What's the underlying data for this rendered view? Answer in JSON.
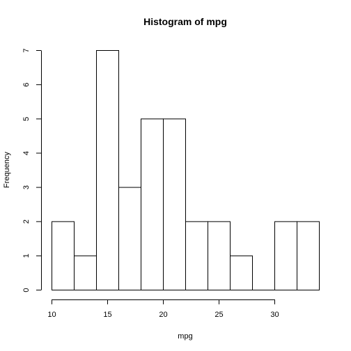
{
  "chart_data": {
    "type": "bar",
    "title": "Histogram of mpg",
    "xlabel": "mpg",
    "ylabel": "Frequency",
    "bins": [
      {
        "from": 10,
        "to": 12,
        "count": 2
      },
      {
        "from": 12,
        "to": 14,
        "count": 1
      },
      {
        "from": 14,
        "to": 16,
        "count": 7
      },
      {
        "from": 16,
        "to": 18,
        "count": 3
      },
      {
        "from": 18,
        "to": 20,
        "count": 5
      },
      {
        "from": 20,
        "to": 22,
        "count": 5
      },
      {
        "from": 22,
        "to": 24,
        "count": 2
      },
      {
        "from": 24,
        "to": 26,
        "count": 2
      },
      {
        "from": 26,
        "to": 28,
        "count": 1
      },
      {
        "from": 28,
        "to": 30,
        "count": 0
      },
      {
        "from": 30,
        "to": 32,
        "count": 2
      },
      {
        "from": 32,
        "to": 34,
        "count": 2
      }
    ],
    "xlim": [
      10,
      34
    ],
    "ylim": [
      0,
      7
    ],
    "x_ticks": [
      10,
      15,
      20,
      25,
      30
    ],
    "y_ticks": [
      0,
      1,
      2,
      3,
      4,
      5,
      6,
      7
    ],
    "grid": false,
    "legend": "none"
  }
}
